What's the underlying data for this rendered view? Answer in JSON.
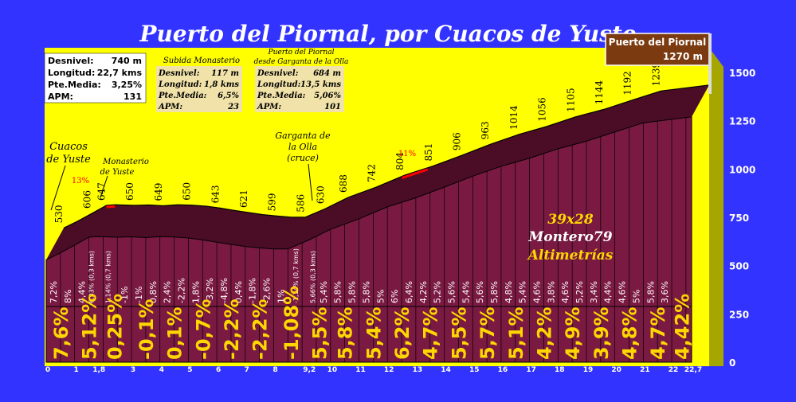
{
  "title": "Puerto del Piornal, por Cuacos de Yuste",
  "summit_box": {
    "name": "Puerto del Piornal",
    "altitude": "1270 m"
  },
  "stats_main": [
    {
      "label": "Desnivel:",
      "value": "740 m"
    },
    {
      "label": "Longitud:",
      "value": "22,7 kms"
    },
    {
      "label": "Pte.Media:",
      "value": "3,25%"
    },
    {
      "label": "APM:",
      "value": "131"
    }
  ],
  "stats_monasterio": {
    "title": "Subida Monasterio",
    "rows": [
      {
        "label": "Desnivel:",
        "value": "117 m"
      },
      {
        "label": "Longitud:",
        "value": "1,8 kms"
      },
      {
        "label": "Pte.Media:",
        "value": "6,5%"
      },
      {
        "label": "APM:",
        "value": "23"
      }
    ]
  },
  "stats_garganta": {
    "title_line1": "Puerto del Piornal",
    "title_line2": "desde Garganta de la Olla",
    "rows": [
      {
        "label": "Desnivel:",
        "value": "684 m"
      },
      {
        "label": "Longitud:",
        "value": "13,5 kms"
      },
      {
        "label": "Pte.Media:",
        "value": "5,06%"
      },
      {
        "label": "APM:",
        "value": "101"
      }
    ]
  },
  "annotations": {
    "cuacos": [
      "Cuacos",
      "de Yuste"
    ],
    "monasterio": [
      "Monasterio",
      "de Yuste"
    ],
    "garganta": [
      "Garganta de",
      "la Olla",
      "(cruce)"
    ],
    "max_grade_1": "13%",
    "max_grade_2": "11%"
  },
  "credits": {
    "line1": "39x28",
    "line2": "Montero79",
    "line3": "Altimetrías"
  },
  "colors": {
    "background": "#3333ff",
    "sky": "#ffff00",
    "profile": "#7a1a42",
    "profile_dark": "#4a0d25",
    "grade_label": "#ffd700",
    "summit_box": "#7b3a10",
    "max_grade": "#ff0000"
  },
  "chart_data": {
    "type": "area",
    "title": "Puerto del Piornal, por Cuacos de Yuste",
    "xlabel": "",
    "ylabel": "",
    "ylim": [
      0,
      1500
    ],
    "xlim": [
      0,
      22.7
    ],
    "y_ticks": [
      0,
      250,
      500,
      750,
      1000,
      1250,
      1500
    ],
    "x_ticks": [
      "0",
      "1",
      "1,8",
      "3",
      "4",
      "5",
      "6",
      "7",
      "8",
      "9,2",
      "10",
      "11",
      "12",
      "13",
      "14",
      "15",
      "16",
      "17",
      "18",
      "19",
      "20",
      "21",
      "22",
      "22,7"
    ],
    "grid": false,
    "profile": [
      {
        "x": 0,
        "alt": 530
      },
      {
        "x": 0.5,
        "alt": 566
      },
      {
        "x": 1,
        "alt": 606
      },
      {
        "x": 1.5,
        "alt": 647
      },
      {
        "x": 1.8,
        "alt": 650
      },
      {
        "x": 2.5,
        "alt": 647
      },
      {
        "x": 3,
        "alt": 649
      },
      {
        "x": 3.5,
        "alt": 645
      },
      {
        "x": 4,
        "alt": 650
      },
      {
        "x": 4.5,
        "alt": 648
      },
      {
        "x": 5,
        "alt": 643
      },
      {
        "x": 5.5,
        "alt": 633
      },
      {
        "x": 6,
        "alt": 621
      },
      {
        "x": 6.5,
        "alt": 610
      },
      {
        "x": 7,
        "alt": 599
      },
      {
        "x": 7.5,
        "alt": 592
      },
      {
        "x": 8,
        "alt": 586
      },
      {
        "x": 8.5,
        "alt": 586
      },
      {
        "x": 9.2,
        "alt": 630
      },
      {
        "x": 10,
        "alt": 688
      },
      {
        "x": 11,
        "alt": 742
      },
      {
        "x": 12,
        "alt": 804
      },
      {
        "x": 13,
        "alt": 851
      },
      {
        "x": 14,
        "alt": 906
      },
      {
        "x": 15,
        "alt": 963
      },
      {
        "x": 16,
        "alt": 1014
      },
      {
        "x": 17,
        "alt": 1056
      },
      {
        "x": 18,
        "alt": 1105
      },
      {
        "x": 19,
        "alt": 1144
      },
      {
        "x": 20,
        "alt": 1192
      },
      {
        "x": 21,
        "alt": 1239
      },
      {
        "x": 22.7,
        "alt": 1270
      }
    ],
    "altitude_labels": [
      {
        "x": 0,
        "label": "530"
      },
      {
        "x": 1,
        "label": "606"
      },
      {
        "x": 1.5,
        "label": "647"
      },
      {
        "x": 2.5,
        "label": "650"
      },
      {
        "x": 3.5,
        "label": "649"
      },
      {
        "x": 4.5,
        "label": "650"
      },
      {
        "x": 5.5,
        "label": "643"
      },
      {
        "x": 6.5,
        "label": "621"
      },
      {
        "x": 7.5,
        "label": "599"
      },
      {
        "x": 8.5,
        "label": "586"
      },
      {
        "x": 9.2,
        "label": "630"
      },
      {
        "x": 10,
        "label": "688"
      },
      {
        "x": 11,
        "label": "742"
      },
      {
        "x": 12,
        "label": "804"
      },
      {
        "x": 13,
        "label": "851"
      },
      {
        "x": 14,
        "label": "906"
      },
      {
        "x": 15,
        "label": "963"
      },
      {
        "x": 16,
        "label": "1014"
      },
      {
        "x": 17,
        "label": "1056"
      },
      {
        "x": 18,
        "label": "1105"
      },
      {
        "x": 19,
        "label": "1144"
      },
      {
        "x": 20,
        "label": "1192"
      },
      {
        "x": 21,
        "label": "1239"
      }
    ],
    "half_km_grades": [
      {
        "x": 0.25,
        "label": "7,2%"
      },
      {
        "x": 0.75,
        "label": "8%"
      },
      {
        "x": 1.25,
        "label": "4,4%"
      },
      {
        "x": 1.55,
        "label": "6,33% (0,3 kms)"
      },
      {
        "x": 2.15,
        "label": "1,14% (0,7 kms)"
      },
      {
        "x": 2.75,
        "label": "-1%"
      },
      {
        "x": 3.25,
        "label": "-1%"
      },
      {
        "x": 3.75,
        "label": "0,8%"
      },
      {
        "x": 4.25,
        "label": "2,4%"
      },
      {
        "x": 4.75,
        "label": "-2,2%"
      },
      {
        "x": 5.25,
        "label": "1,8%"
      },
      {
        "x": 5.75,
        "label": "-3,2%"
      },
      {
        "x": 6.25,
        "label": "-4,8%"
      },
      {
        "x": 6.75,
        "label": "0,4%"
      },
      {
        "x": 7.25,
        "label": "-1,8%"
      },
      {
        "x": 7.75,
        "label": "-2,6%"
      },
      {
        "x": 8.25,
        "label": "1%"
      },
      {
        "x": 8.75,
        "label": "-1,14% (0,7 kms)"
      },
      {
        "x": 9.35,
        "label": "5,66% (0,3 kms)"
      },
      {
        "x": 9.75,
        "label": "5,4%"
      },
      {
        "x": 10.25,
        "label": "5,8%"
      },
      {
        "x": 10.75,
        "label": "5,8%"
      },
      {
        "x": 11.25,
        "label": "5,8%"
      },
      {
        "x": 11.75,
        "label": "5%"
      },
      {
        "x": 12.25,
        "label": "6%"
      },
      {
        "x": 12.75,
        "label": "6,4%"
      },
      {
        "x": 13.25,
        "label": "4,2%"
      },
      {
        "x": 13.75,
        "label": "5,2%"
      },
      {
        "x": 14.25,
        "label": "5,6%"
      },
      {
        "x": 14.75,
        "label": "5,4%"
      },
      {
        "x": 15.25,
        "label": "5,6%"
      },
      {
        "x": 15.75,
        "label": "5,8%"
      },
      {
        "x": 16.25,
        "label": "4,8%"
      },
      {
        "x": 16.75,
        "label": "5,4%"
      },
      {
        "x": 17.25,
        "label": "4,6%"
      },
      {
        "x": 17.75,
        "label": "3,8%"
      },
      {
        "x": 18.25,
        "label": "4,6%"
      },
      {
        "x": 18.75,
        "label": "5,2%"
      },
      {
        "x": 19.25,
        "label": "3,4%"
      },
      {
        "x": 19.75,
        "label": "4,4%"
      },
      {
        "x": 20.25,
        "label": "4,6%"
      },
      {
        "x": 20.75,
        "label": "5%"
      },
      {
        "x": 21.25,
        "label": "5,8%"
      },
      {
        "x": 21.75,
        "label": "3,6%"
      }
    ],
    "km_grades": [
      {
        "x": 0.5,
        "label": "7,6%"
      },
      {
        "x": 1.5,
        "label": "5,12%"
      },
      {
        "x": 2.4,
        "label": "0,25%"
      },
      {
        "x": 3.5,
        "label": "-0,1%"
      },
      {
        "x": 4.5,
        "label": "0,1%"
      },
      {
        "x": 5.5,
        "label": "-0,7%"
      },
      {
        "x": 6.5,
        "label": "-2,2%"
      },
      {
        "x": 7.5,
        "label": "-2,2%"
      },
      {
        "x": 8.6,
        "label": "-1,08%"
      },
      {
        "x": 9.6,
        "label": "5,5%"
      },
      {
        "x": 10.5,
        "label": "5,8%"
      },
      {
        "x": 11.5,
        "label": "5,4%"
      },
      {
        "x": 12.5,
        "label": "6,2%"
      },
      {
        "x": 13.5,
        "label": "4,7%"
      },
      {
        "x": 14.5,
        "label": "5,5%"
      },
      {
        "x": 15.5,
        "label": "5,7%"
      },
      {
        "x": 16.5,
        "label": "5,1%"
      },
      {
        "x": 17.5,
        "label": "4,2%"
      },
      {
        "x": 18.5,
        "label": "4,9%"
      },
      {
        "x": 19.5,
        "label": "3,9%"
      },
      {
        "x": 20.5,
        "label": "4,8%"
      },
      {
        "x": 21.5,
        "label": "4,7%"
      },
      {
        "x": 22.35,
        "label": "4,42%"
      }
    ],
    "max_grade_segments": [
      {
        "x1": 1.5,
        "x2": 1.8,
        "label": "13%"
      },
      {
        "x1": 11.9,
        "x2": 12.8,
        "label": "11%"
      }
    ]
  }
}
